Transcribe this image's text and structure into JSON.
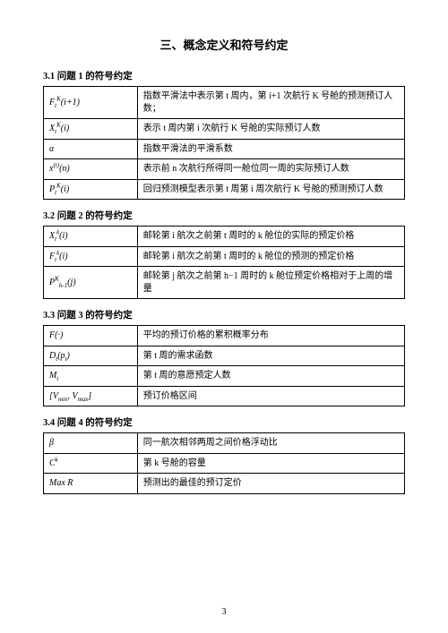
{
  "title": "三、概念定义和符号约定",
  "pageNumber": "3",
  "sections": [
    {
      "heading": "3.1 问题 1 的符号约定",
      "rows": [
        {
          "symbol": "F<sub>t</sub><sup>K</sup>(i+1)",
          "desc": "指数平滑法中表示第 t 周内，第 i+1 次航行 K 号舱的预测预订人数；"
        },
        {
          "symbol": "X<sub>t</sub><sup>K</sup>(i)",
          "desc": "表示 t 周内第 i 次航行 K 号舱的实际预订人数"
        },
        {
          "symbol": "α",
          "desc": "指数平滑法的平滑系数"
        },
        {
          "symbol": "x<sup>(t)</sup>(n)",
          "desc": "表示前 n 次航行所得同一舱位同一周的实际预订人数"
        },
        {
          "symbol": "P<sub>t</sub><sup>K</sup>(i)",
          "desc": "回归预测模型表示第 t 周第 i 周次航行 K 号舱的预测预订人数"
        }
      ]
    },
    {
      "heading": "3.2 问题 2 的符号约定",
      "rows": [
        {
          "symbol": "X<sub>t</sub><sup>k</sup>(i)",
          "desc": "邮轮第 i 航次之前第 t 周时的 k 舱位的实际的预定价格"
        },
        {
          "symbol": "F<sub>t</sub><sup>k</sup>(i)",
          "desc": "邮轮第 i 航次之前第 t 周时的 k 舱位的预测的预定价格"
        },
        {
          "symbol": "P<sup>K</sup><sub>h-1</sub>(j)",
          "desc": "邮轮第 j 航次之前第 h−1 周时的 k 舱位预定价格相对于上周的增量"
        }
      ]
    },
    {
      "heading": "3.3 问题 3 的符号约定",
      "rows": [
        {
          "symbol": "F(·)",
          "desc": "平均的预订价格的累积概率分布"
        },
        {
          "symbol": "D<sub>t</sub>(p<sub>t</sub>)",
          "desc": "第 t 周的需求函数"
        },
        {
          "symbol": "M<sub>t</sub>",
          "desc": "第 t 周的意愿预定人数"
        },
        {
          "symbol": "[V<sub>min</sub>, V<sub>max</sub>]",
          "desc": "预订价格区间"
        }
      ]
    },
    {
      "heading": "3.4 问题 4 的符号约定",
      "rows": [
        {
          "symbol": "β",
          "desc": "同一航次相邻两周之间价格浮动比"
        },
        {
          "symbol": "C<sup>k</sup>",
          "desc": "第 k 号舱的容量"
        },
        {
          "symbol": "Max R",
          "desc": "预测出的最佳的预订定价"
        }
      ]
    }
  ]
}
